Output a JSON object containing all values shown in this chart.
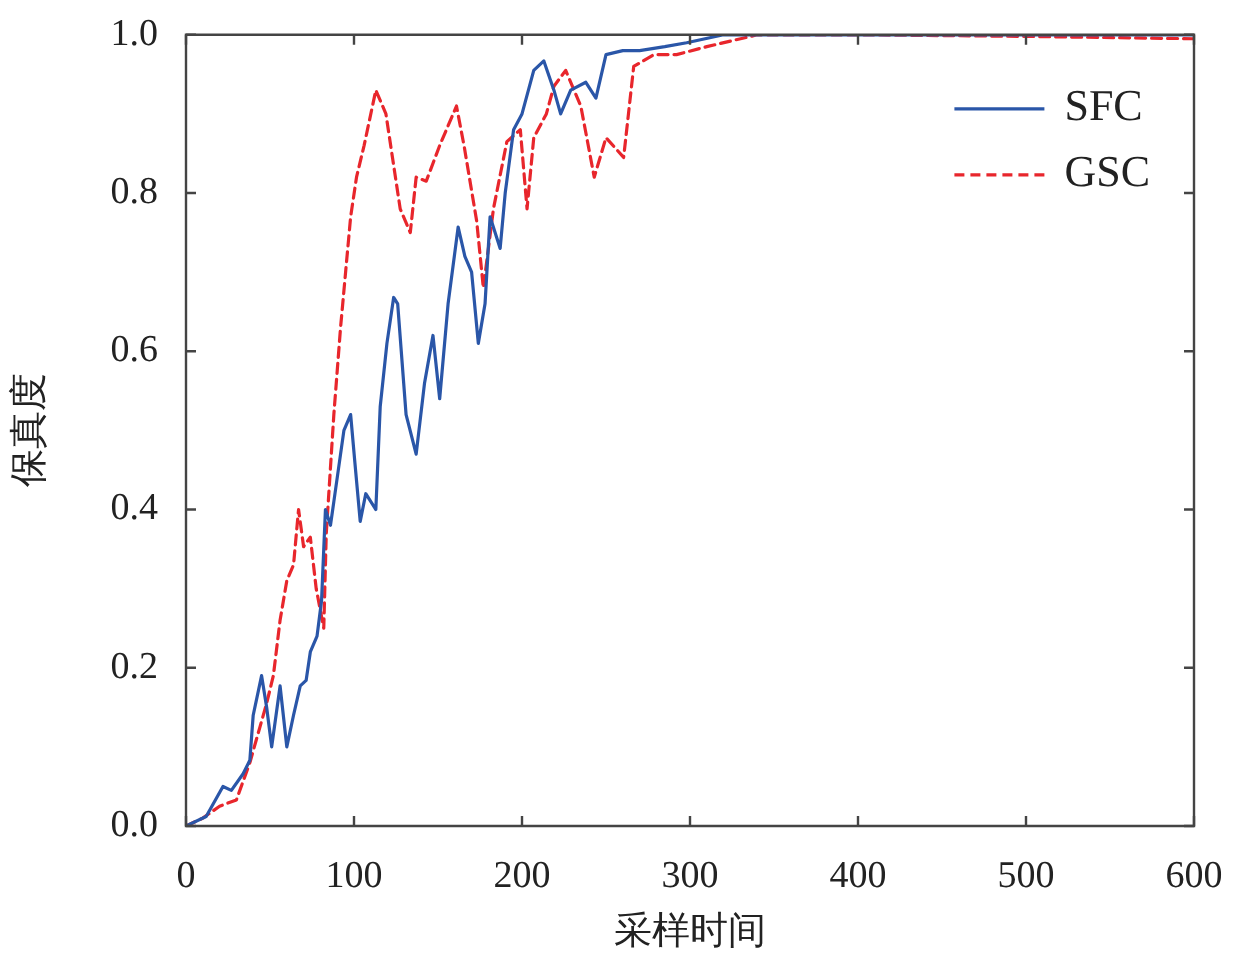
{
  "chart_data": {
    "type": "line",
    "xlabel": "采样时间",
    "ylabel": "保真度",
    "xlim": [
      0,
      600
    ],
    "ylim": [
      0,
      1
    ],
    "xticks": [
      0,
      100,
      200,
      300,
      400,
      500,
      600
    ],
    "yticks": [
      {
        "value": 0,
        "label": "0.0"
      },
      {
        "value": 0.2,
        "label": "0.2"
      },
      {
        "value": 0.4,
        "label": "0.4"
      },
      {
        "value": 0.6,
        "label": "0.6"
      },
      {
        "value": 0.8,
        "label": "0.8"
      },
      {
        "value": 1,
        "label": "1.0"
      }
    ],
    "grid": false,
    "legend": "top right",
    "marker": "none",
    "series": [
      {
        "name": "SFC",
        "color": "#2a56a8",
        "line_style": "solid",
        "x": [
          0,
          12,
          22,
          27,
          34,
          38,
          40,
          45,
          48,
          51,
          56,
          60,
          64,
          68,
          71.5,
          74,
          78,
          80.7,
          83,
          86,
          88,
          94,
          98,
          100.5,
          103.7,
          107,
          113,
          115.6,
          119.6,
          123.6,
          126,
          131,
          137,
          142,
          147,
          151,
          156,
          162,
          166,
          170,
          174,
          178,
          181,
          187,
          190,
          195,
          200,
          207,
          213,
          219,
          223,
          229,
          238,
          244,
          250,
          260,
          270,
          285,
          298,
          320,
          350,
          400,
          500,
          600
        ],
        "values": [
          0,
          0.012,
          0.05,
          0.045,
          0.066,
          0.083,
          0.14,
          0.19,
          0.15,
          0.1,
          0.177,
          0.1,
          0.14,
          0.177,
          0.184,
          0.22,
          0.24,
          0.285,
          0.4,
          0.38,
          0.41,
          0.5,
          0.52,
          0.46,
          0.385,
          0.42,
          0.4,
          0.53,
          0.61,
          0.668,
          0.66,
          0.52,
          0.47,
          0.56,
          0.62,
          0.54,
          0.66,
          0.757,
          0.72,
          0.7,
          0.61,
          0.66,
          0.77,
          0.73,
          0.8,
          0.88,
          0.9,
          0.955,
          0.967,
          0.93,
          0.9,
          0.93,
          0.94,
          0.92,
          0.975,
          0.98,
          0.98,
          0.985,
          0.99,
          1,
          1,
          1,
          1,
          1
        ]
      },
      {
        "name": "GSC",
        "color": "#e8262c",
        "line_style": "dashed",
        "x": [
          0,
          10,
          20,
          30,
          38,
          44,
          48,
          52,
          56,
          60,
          64,
          67,
          70,
          74,
          77.5,
          82,
          83.5,
          88,
          92,
          98,
          101.5,
          106,
          113,
          119,
          127.5,
          133.5,
          137,
          143,
          151,
          161,
          165.5,
          173,
          177,
          183,
          191,
          199,
          203,
          207,
          214.5,
          219,
          226,
          235,
          243,
          250,
          260.5,
          266.5,
          278.5,
          292,
          310,
          340,
          400,
          500,
          600
        ],
        "values": [
          0,
          0.01,
          0.025,
          0.033,
          0.08,
          0.125,
          0.155,
          0.19,
          0.26,
          0.31,
          0.33,
          0.4,
          0.353,
          0.365,
          0.3,
          0.25,
          0.37,
          0.52,
          0.63,
          0.77,
          0.82,
          0.86,
          0.93,
          0.9,
          0.78,
          0.75,
          0.82,
          0.815,
          0.86,
          0.91,
          0.86,
          0.765,
          0.68,
          0.78,
          0.865,
          0.88,
          0.78,
          0.87,
          0.9,
          0.935,
          0.955,
          0.91,
          0.82,
          0.87,
          0.845,
          0.96,
          0.975,
          0.975,
          0.985,
          1,
          1,
          0.998,
          0.995
        ]
      }
    ]
  }
}
